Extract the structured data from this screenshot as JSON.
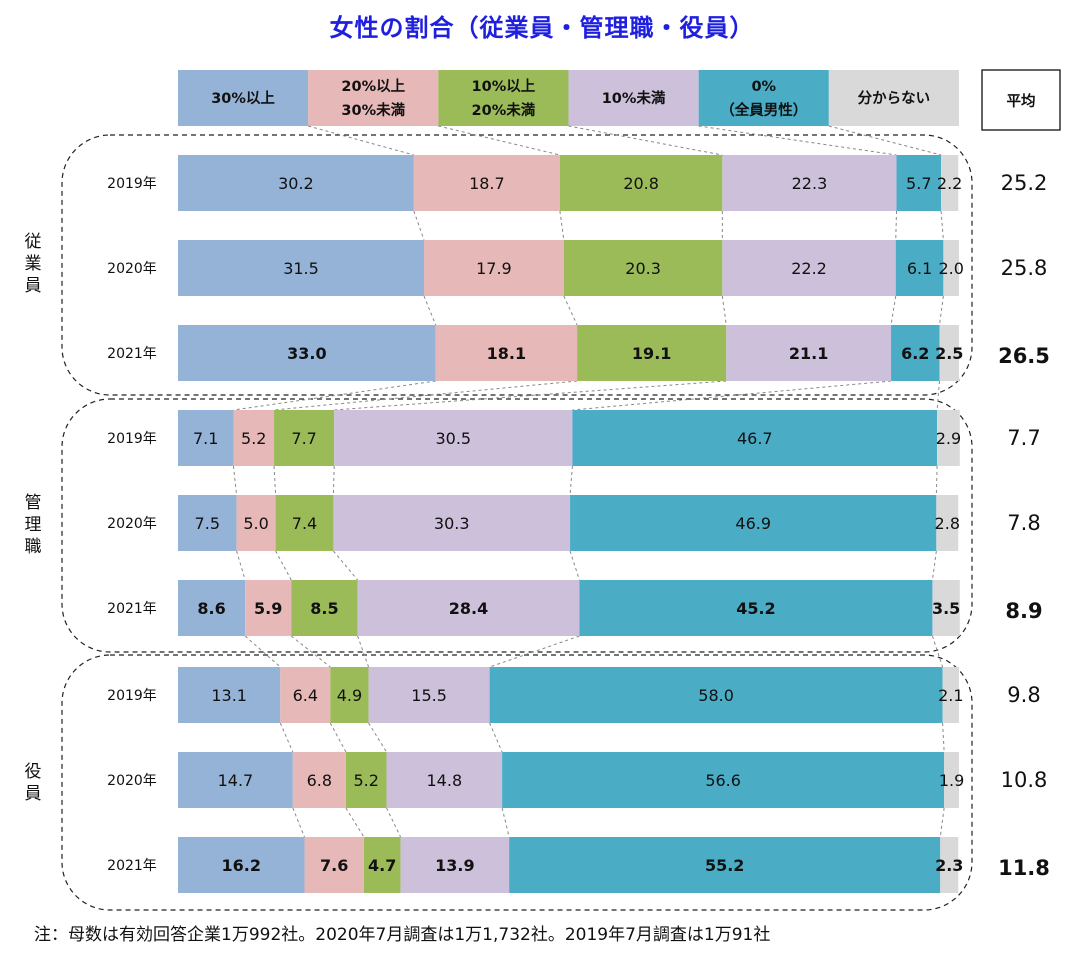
{
  "title": "女性の割合（従業員・管理職・役員）",
  "note": "注：母数は有効回答企業1万992社。2020年7月調査は1万1,732社。2019年7月調査は1万91社",
  "avg_header": "平均",
  "chart_data": {
    "type": "bar",
    "stacked": true,
    "orientation": "horizontal",
    "xlim": [
      0,
      100
    ],
    "series": [
      {
        "name": "30%以上",
        "color": "#95b3d7"
      },
      {
        "name": "20%以上\n30%未満",
        "color": "#e6b9b8"
      },
      {
        "name": "10%以上\n20%未満",
        "color": "#9bbb59"
      },
      {
        "name": "10%未満",
        "color": "#ccc0da"
      },
      {
        "name": "0%\n（全員男性）",
        "color": "#4bacc6"
      },
      {
        "name": "分からない",
        "color": "#d9d9d9"
      }
    ],
    "groups": [
      {
        "name": "従業員",
        "rows": [
          {
            "year": "2019年",
            "values": [
              30.2,
              18.7,
              20.8,
              22.3,
              5.7,
              2.2
            ],
            "labels": [
              "30.2",
              "18.7",
              "20.8",
              "22.3",
              "5.7",
              "2.2"
            ],
            "average": "25.2",
            "bold": false
          },
          {
            "year": "2020年",
            "values": [
              31.5,
              17.9,
              20.3,
              22.2,
              6.1,
              2.0
            ],
            "labels": [
              "31.5",
              "17.9",
              "20.3",
              "22.2",
              "6.1",
              "2.0"
            ],
            "average": "25.8",
            "bold": false
          },
          {
            "year": "2021年",
            "values": [
              33.0,
              18.1,
              19.1,
              21.1,
              6.2,
              2.5
            ],
            "labels": [
              "33.0",
              "18.1",
              "19.1",
              "21.1",
              "6.2",
              "2.5"
            ],
            "average": "26.5",
            "bold": true
          }
        ]
      },
      {
        "name": "管理職",
        "rows": [
          {
            "year": "2019年",
            "values": [
              7.1,
              5.2,
              7.7,
              30.5,
              46.7,
              2.9
            ],
            "labels": [
              "7.1",
              "5.2",
              "7.7",
              "30.5",
              "46.7",
              "2.9"
            ],
            "average": "7.7",
            "bold": false
          },
          {
            "year": "2020年",
            "values": [
              7.5,
              5.0,
              7.4,
              30.3,
              46.9,
              2.8
            ],
            "labels": [
              "7.5",
              "5.0",
              "7.4",
              "30.3",
              "46.9",
              "2.8"
            ],
            "average": "7.8",
            "bold": false
          },
          {
            "year": "2021年",
            "values": [
              8.6,
              5.9,
              8.5,
              28.4,
              45.2,
              3.5
            ],
            "labels": [
              "8.6",
              "5.9",
              "8.5",
              "28.4",
              "45.2",
              "3.5"
            ],
            "average": "8.9",
            "bold": true
          }
        ]
      },
      {
        "name": "役員",
        "rows": [
          {
            "year": "2019年",
            "values": [
              13.1,
              6.4,
              4.9,
              15.5,
              58.0,
              2.1
            ],
            "labels": [
              "13.1",
              "6.4",
              "4.9",
              "15.5",
              "58.0",
              "2.1"
            ],
            "average": "9.8",
            "bold": false
          },
          {
            "year": "2020年",
            "values": [
              14.7,
              6.8,
              5.2,
              14.8,
              56.6,
              1.9
            ],
            "labels": [
              "14.7",
              "6.8",
              "5.2",
              "14.8",
              "56.6",
              "1.9"
            ],
            "average": "10.8",
            "bold": false
          },
          {
            "year": "2021年",
            "values": [
              16.2,
              7.6,
              4.7,
              13.9,
              55.2,
              2.3
            ],
            "labels": [
              "16.2",
              "7.6",
              "4.7",
              "13.9",
              "55.2",
              "2.3"
            ],
            "average": "11.8",
            "bold": true
          }
        ]
      }
    ]
  }
}
